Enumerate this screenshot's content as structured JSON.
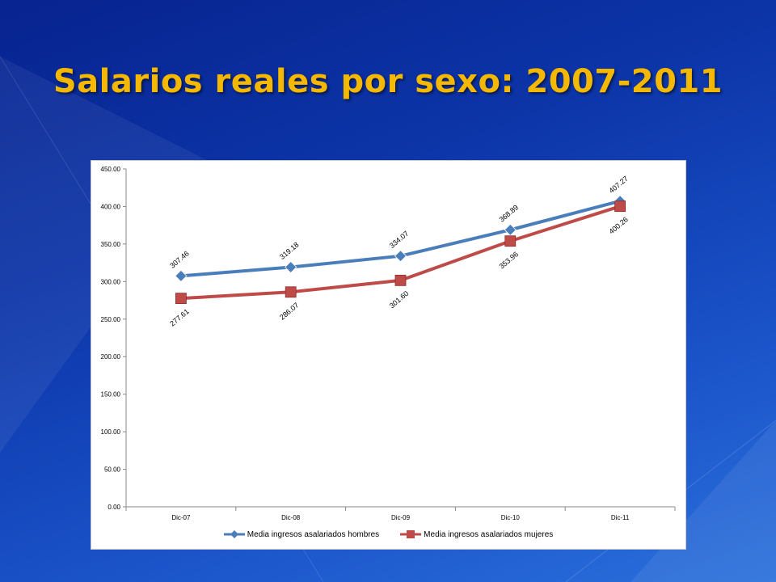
{
  "slide": {
    "title": "Salarios reales por sexo: 2007-2011"
  },
  "colors": {
    "title": "#f5b800",
    "series_hombres": "#4a7ebb",
    "series_mujeres": "#be4b48",
    "plot_background": "#ffffff"
  },
  "chart_data": {
    "type": "line",
    "title": "",
    "xlabel": "",
    "ylabel": "",
    "categories": [
      "Dic-07",
      "Dic-08",
      "Dic-09",
      "Dic-10",
      "Dic-11"
    ],
    "y_ticks": [
      "0.00",
      "50.00",
      "100.00",
      "150.00",
      "200.00",
      "250.00",
      "300.00",
      "350.00",
      "400.00",
      "450.00"
    ],
    "ylim": [
      0,
      450
    ],
    "grid": false,
    "legend_position": "bottom",
    "series": [
      {
        "name": "Media ingresos asalariados hombres",
        "marker": "diamond",
        "values": [
          307.46,
          319.18,
          334.07,
          368.89,
          407.27
        ],
        "labels": [
          "307.46",
          "319.18",
          "334.07",
          "368.89",
          "407.27"
        ],
        "label_position": "above"
      },
      {
        "name": "Media ingresos asalariados mujeres",
        "marker": "square",
        "values": [
          277.61,
          286.07,
          301.6,
          353.96,
          400.26
        ],
        "labels": [
          "277.61",
          "286.07",
          "301.60",
          "353.96",
          "400.26"
        ],
        "label_position": "below"
      }
    ]
  }
}
